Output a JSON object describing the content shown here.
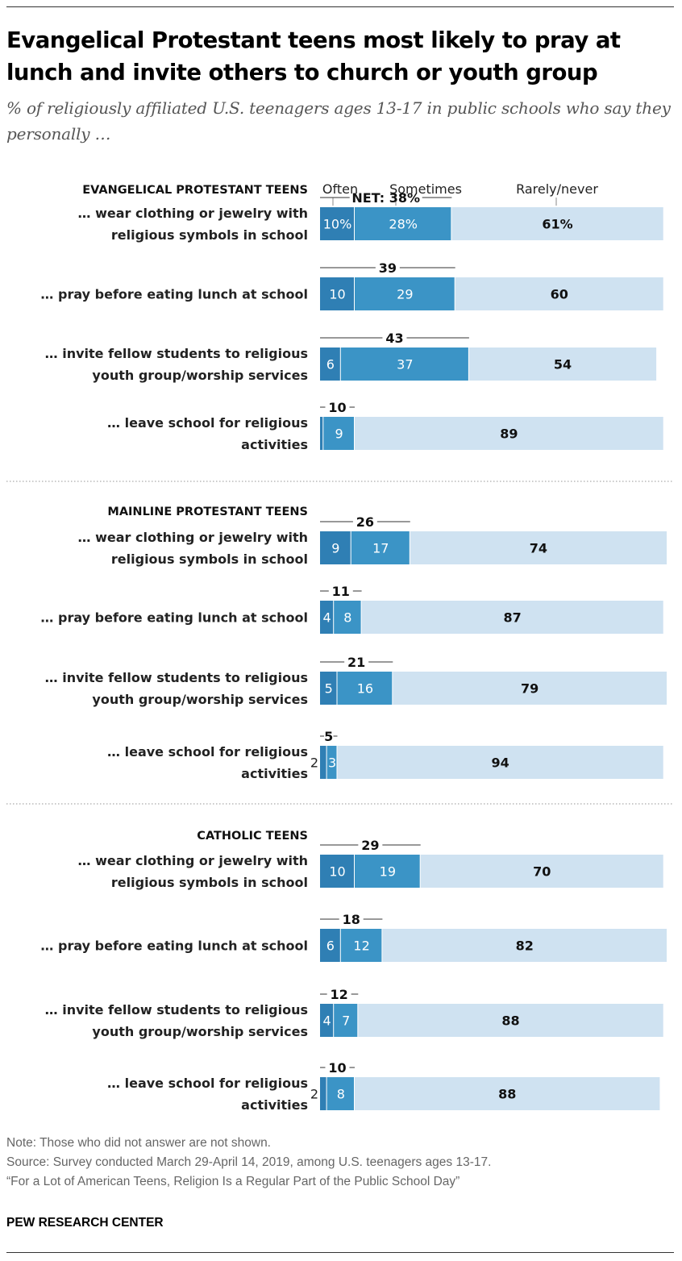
{
  "title": "Evangelical Protestant teens most likely to pray at lunch and invite others to church or youth group",
  "subtitle": "% of religiously affiliated U.S. teenagers ages 13-17 in public schools who say they personally …",
  "colors": {
    "often": "#2f7fb4",
    "sometimes": "#3b94c6",
    "rarely": "#cfe2f1",
    "divider": "#aaaaaa"
  },
  "chart_data": {
    "type": "bar",
    "orientation": "horizontal-stacked",
    "series_names": [
      "Often",
      "Sometimes",
      "Rarely/never"
    ],
    "net_prefix": "NET: ",
    "groups": [
      {
        "name": "EVANGELICAL PROTESTANT TEENS",
        "rows": [
          {
            "label": [
              "… wear clothing or jewelry with",
              "religious symbols in school"
            ],
            "often": 10,
            "sometimes": 28,
            "rarely": 61,
            "net": 38,
            "labels": {
              "often": "10%",
              "sometimes": "28%",
              "rarely": "61%",
              "net": "38%"
            }
          },
          {
            "label": [
              "… pray before eating lunch at school"
            ],
            "often": 10,
            "sometimes": 29,
            "rarely": 60,
            "net": 39
          },
          {
            "label": [
              "… invite fellow students to religious",
              "youth group/worship services"
            ],
            "often": 6,
            "sometimes": 37,
            "rarely": 54,
            "net": 43
          },
          {
            "label": [
              "… leave school for religious",
              "activities"
            ],
            "often": 1,
            "sometimes": 9,
            "rarely": 89,
            "net": 10,
            "labels": {
              "often": ""
            }
          }
        ]
      },
      {
        "name": "MAINLINE PROTESTANT TEENS",
        "rows": [
          {
            "label": [
              "… wear clothing or jewelry with",
              "religious symbols in school"
            ],
            "often": 9,
            "sometimes": 17,
            "rarely": 74,
            "net": 26
          },
          {
            "label": [
              "… pray before eating lunch at school"
            ],
            "often": 4,
            "sometimes": 8,
            "rarely": 87,
            "net": 11
          },
          {
            "label": [
              "… invite fellow students to religious",
              "youth group/worship services"
            ],
            "often": 5,
            "sometimes": 16,
            "rarely": 79,
            "net": 21
          },
          {
            "label": [
              "… leave school for religious",
              "activities"
            ],
            "often": 2,
            "sometimes": 3,
            "rarely": 94,
            "net": 5,
            "labels": {
              "often_outside": true
            }
          }
        ]
      },
      {
        "name": "CATHOLIC TEENS",
        "rows": [
          {
            "label": [
              "… wear clothing or jewelry with",
              "religious symbols in school"
            ],
            "often": 10,
            "sometimes": 19,
            "rarely": 70,
            "net": 29
          },
          {
            "label": [
              "… pray before eating lunch at school"
            ],
            "often": 6,
            "sometimes": 12,
            "rarely": 82,
            "net": 18
          },
          {
            "label": [
              "… invite fellow students to religious",
              "youth group/worship services"
            ],
            "often": 4,
            "sometimes": 7,
            "rarely": 88,
            "net": 12
          },
          {
            "label": [
              "… leave school for religious",
              "activities"
            ],
            "often": 2,
            "sometimes": 8,
            "rarely": 88,
            "net": 10,
            "labels": {
              "often_outside": true
            }
          }
        ]
      }
    ]
  },
  "notes": {
    "note": "Note: Those who did not answer are not shown.",
    "source": "Source: Survey conducted March 29-April 14, 2019, among U.S. teenagers ages 13-17.",
    "report": "“For a Lot of American Teens, Religion Is a Regular Part of the Public School Day”"
  },
  "brand": "PEW RESEARCH CENTER"
}
